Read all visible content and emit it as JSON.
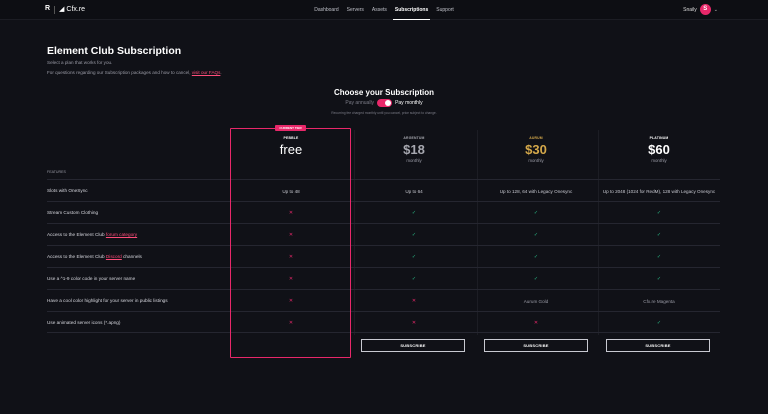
{
  "header": {
    "logo_small": "R",
    "logo_main": "Cfx.re",
    "nav": [
      "Dashboard",
      "Servers",
      "Assets",
      "Subscriptions",
      "Support"
    ],
    "active_nav": "Subscriptions",
    "username": "Snaily",
    "avatar_initial": "S"
  },
  "intro": {
    "title": "Element Club Subscription",
    "subtitle": "Select a plan that works for you.",
    "faq_text": "For questions regarding our Subscription packages and how to cancel,",
    "faq_link": "visit our FAQs"
  },
  "billing": {
    "heading": "Choose your Subscription",
    "annual_label": "Pay annually",
    "monthly_label": "Pay monthly",
    "note": "Recurring fee charged monthly until you cancel, price subject to change."
  },
  "current_tier_tag": "CURRENT TIER",
  "features_label": "FEATURES",
  "tiers": [
    {
      "name": "PEBBLE",
      "price": "free",
      "freq": "",
      "color": "#ffffff"
    },
    {
      "name": "ARGENTUM",
      "price": "$18",
      "freq": "monthly",
      "color": "#a7a8b0"
    },
    {
      "name": "AURUM",
      "price": "$30",
      "freq": "monthly",
      "color": "#d4a84a"
    },
    {
      "name": "PLATINUM",
      "price": "$60",
      "freq": "monthly",
      "color": "#ffffff"
    }
  ],
  "features": [
    {
      "label": "Slots with OneSync",
      "values": [
        "Up to 48",
        "Up to 64",
        "Up to 128, 64 with Legacy Onesync",
        "Up to 2048 (1024 for RedM), 128 with Legacy Onesync"
      ]
    },
    {
      "label": "Stream Custom Clothing",
      "values": [
        "x",
        "check",
        "check",
        "check"
      ]
    },
    {
      "label": "Access to the Element Club forum category",
      "values": [
        "x",
        "check",
        "check",
        "check"
      ]
    },
    {
      "label": "Access to the Element Club Discord channels",
      "values": [
        "x",
        "check",
        "check",
        "check"
      ]
    },
    {
      "label": "Use a ^1-9 color code in your server name",
      "values": [
        "x",
        "check",
        "check",
        "check"
      ]
    },
    {
      "label": "Have a cool color highlight for your server in public listings",
      "values": [
        "x",
        "x",
        "Aurum Gold",
        "Cfx.re Magenta"
      ]
    },
    {
      "label": "Use animated server icons (*.apng)",
      "values": [
        "x",
        "x",
        "x",
        "check"
      ]
    }
  ],
  "feature_labels_parts": {
    "forum_prefix": "Access to the Element Club ",
    "forum_link": "forum category",
    "discord_prefix": "Access to the Element Club ",
    "discord_link": "Discord",
    "discord_suffix": " channels"
  },
  "subscribe_label": "SUBSCRIBE",
  "glyphs": {
    "x": "✕",
    "check": "✓"
  },
  "colors": {
    "accent": "#e8286a",
    "check": "#2bbf8a",
    "gold": "#d4a84a"
  }
}
